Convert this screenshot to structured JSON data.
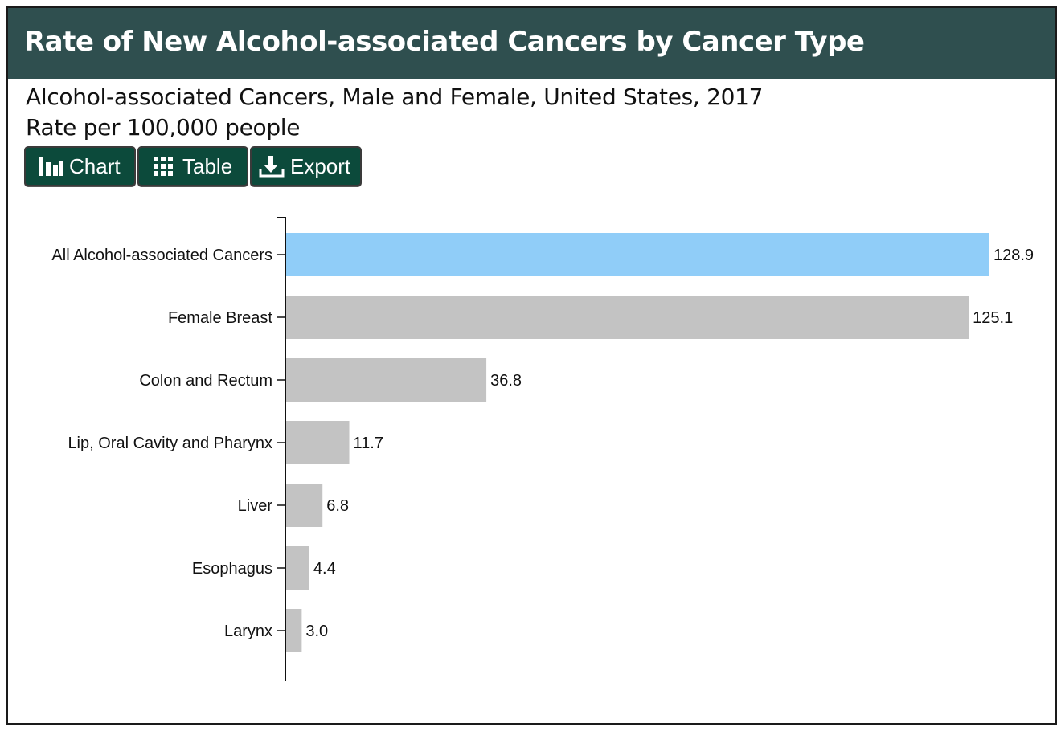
{
  "header": {
    "title": "Rate of New Alcohol-associated Cancers by Cancer Type"
  },
  "subtitle": {
    "line1": "Alcohol-associated Cancers, Male and Female, United States, 2017",
    "line2": "Rate per 100,000 people"
  },
  "buttons": {
    "chart": {
      "label": "Chart",
      "icon": "bar-chart-icon"
    },
    "table": {
      "label": "Table",
      "icon": "grid-icon"
    },
    "export": {
      "label": "Export",
      "icon": "download-icon"
    }
  },
  "colors": {
    "header_bg": "#2f4f4f",
    "button_bg": "#0c4a3b",
    "highlight_bar": "#90cdf8",
    "bar": "#c3c3c3"
  },
  "chart_data": {
    "type": "bar",
    "orientation": "horizontal",
    "categories": [
      "All Alcohol-associated Cancers",
      "Female Breast",
      "Colon and Rectum",
      "Lip, Oral Cavity and Pharynx",
      "Liver",
      "Esophagus",
      "Larynx"
    ],
    "values": [
      128.9,
      125.1,
      36.8,
      11.7,
      6.8,
      4.4,
      3.0
    ],
    "value_labels": [
      "128.9",
      "125.1",
      "36.8",
      "11.7",
      "6.8",
      "4.4",
      "3.0"
    ],
    "highlighted_category": "All Alcohol-associated Cancers",
    "xlim": [
      0,
      128.9
    ],
    "grid": false,
    "legend": "none"
  }
}
